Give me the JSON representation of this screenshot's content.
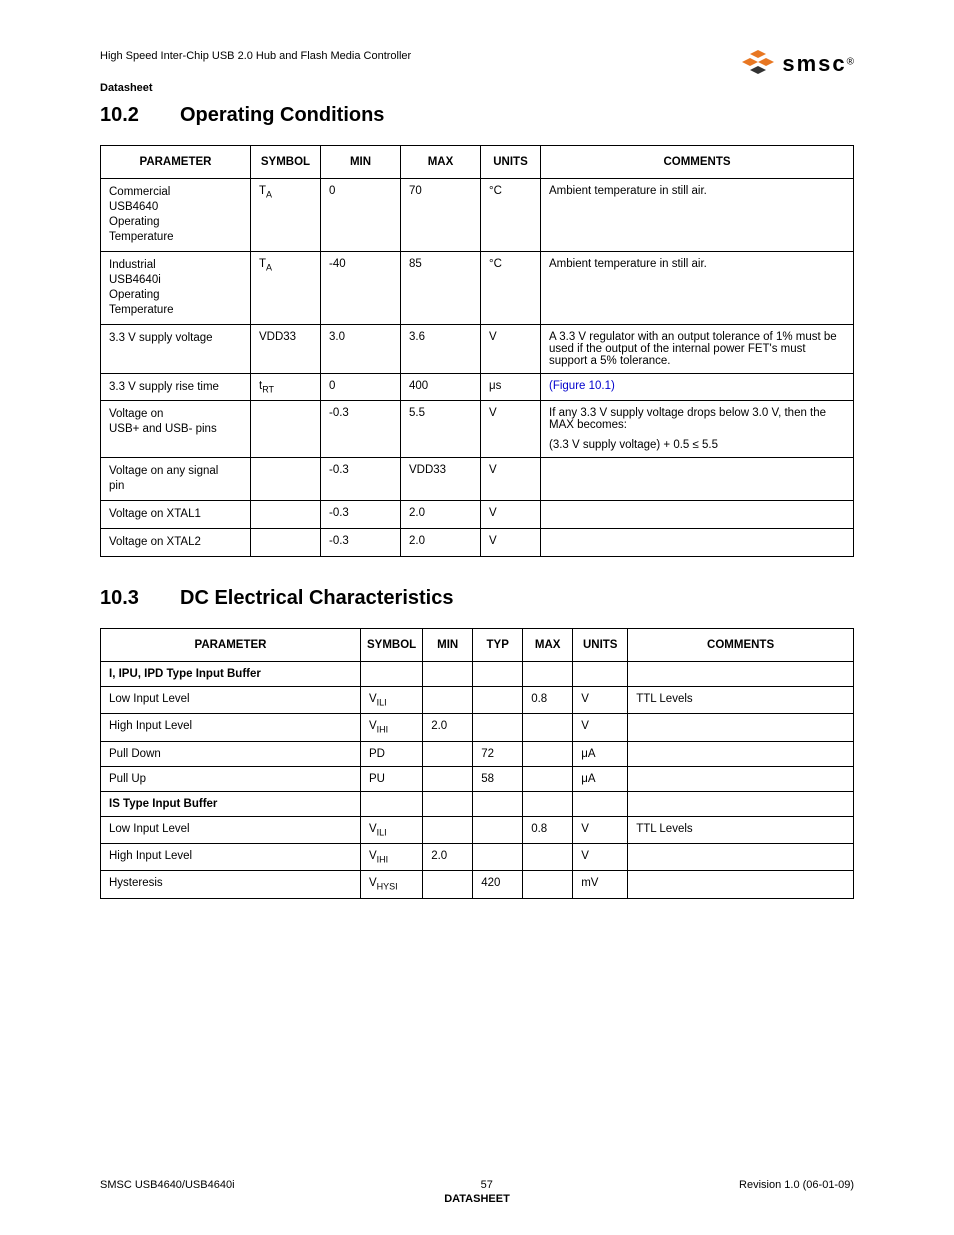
{
  "header": {
    "doc_title": "High Speed Inter-Chip USB 2.0 Hub and Flash Media Controller",
    "datasheet_label": "Datasheet",
    "logo_text": "smsc",
    "logo_r": "®",
    "logo_color": "#e87722"
  },
  "section1": {
    "num": "10.2",
    "title": "Operating Conditions",
    "headers": [
      "PARAMETER",
      "SYMBOL",
      "MIN",
      "MAX",
      "UNITS",
      "COMMENTS"
    ],
    "col_widths": [
      "150px",
      "70px",
      "80px",
      "80px",
      "60px",
      "auto"
    ],
    "rows": [
      {
        "param": "Commercial USB4640 Operating Temperature",
        "symbol_base": "T",
        "symbol_sub": "A",
        "min": "0",
        "max": "70",
        "units": "°C",
        "comments": "Ambient temperature in still air."
      },
      {
        "param": "Industrial USB4640i Operating Temperature",
        "symbol_base": "T",
        "symbol_sub": "A",
        "min": "-40",
        "max": "85",
        "units": "°C",
        "comments": "Ambient temperature in still air."
      },
      {
        "param": "3.3 V supply voltage",
        "symbol_plain": "VDD33",
        "min": "3.0",
        "max": "3.6",
        "units": "V",
        "comments": "A 3.3 V regulator with an output tolerance of 1% must be used if the output of the internal power FET's must support a 5% tolerance."
      },
      {
        "param": "3.3 V supply rise time",
        "symbol_base": "t",
        "symbol_sub": "RT",
        "min": "0",
        "max": "400",
        "units": "μs",
        "comments_link": "(Figure 10.1)"
      },
      {
        "param": "Voltage on USB+ and USB- pins",
        "min": "-0.3",
        "max": "5.5",
        "units": "V",
        "comments_multi": [
          "If any 3.3 V supply voltage drops below 3.0 V, then the MAX becomes:",
          "(3.3 V supply voltage) + 0.5 ≤ 5.5"
        ]
      },
      {
        "param": "Voltage on any signal pin",
        "min": "-0.3",
        "max": "VDD33",
        "units": "V",
        "comments": ""
      },
      {
        "param": "Voltage on XTAL1",
        "min": "-0.3",
        "max": "2.0",
        "units": "V",
        "comments": ""
      },
      {
        "param": "Voltage on XTAL2",
        "min": "-0.3",
        "max": "2.0",
        "units": "V",
        "comments": ""
      }
    ]
  },
  "section2": {
    "num": "10.3",
    "title": "DC Electrical Characteristics",
    "headers": [
      "PARAMETER",
      "SYMBOL",
      "MIN",
      "TYP",
      "MAX",
      "UNITS",
      "COMMENTS"
    ],
    "col_widths": [
      "260px",
      "60px",
      "50px",
      "50px",
      "50px",
      "55px",
      "auto"
    ],
    "rows": [
      {
        "param": "I, IPU, IPD Type Input Buffer",
        "header": true
      },
      {
        "param": "Low Input Level",
        "symbol_base": "V",
        "symbol_sub": "ILI",
        "max": "0.8",
        "units": "V",
        "comments": "TTL Levels"
      },
      {
        "param": "High Input Level",
        "symbol_base": "V",
        "symbol_sub": "IHI",
        "min": "2.0",
        "units": "V"
      },
      {
        "param": "Pull Down",
        "symbol_plain": "PD",
        "typ": "72",
        "units": "μA"
      },
      {
        "param": "Pull Up",
        "symbol_plain": "PU",
        "typ": "58",
        "units": "μA"
      },
      {
        "param": "IS Type Input Buffer",
        "header": true
      },
      {
        "param": "Low Input Level",
        "symbol_base": "V",
        "symbol_sub": "ILI",
        "max": "0.8",
        "units": "V",
        "comments": "TTL Levels"
      },
      {
        "param": "High Input Level",
        "symbol_base": "V",
        "symbol_sub": "IHI",
        "min": "2.0",
        "units": "V"
      },
      {
        "param": "Hysteresis",
        "symbol_base": "V",
        "symbol_sub": "HYSI",
        "typ": "420",
        "units": "mV"
      }
    ]
  },
  "footer": {
    "left": "SMSC USB4640/USB4640i",
    "center_num": "57",
    "center_label": "DATASHEET",
    "right": "Revision 1.0 (06-01-09)"
  }
}
